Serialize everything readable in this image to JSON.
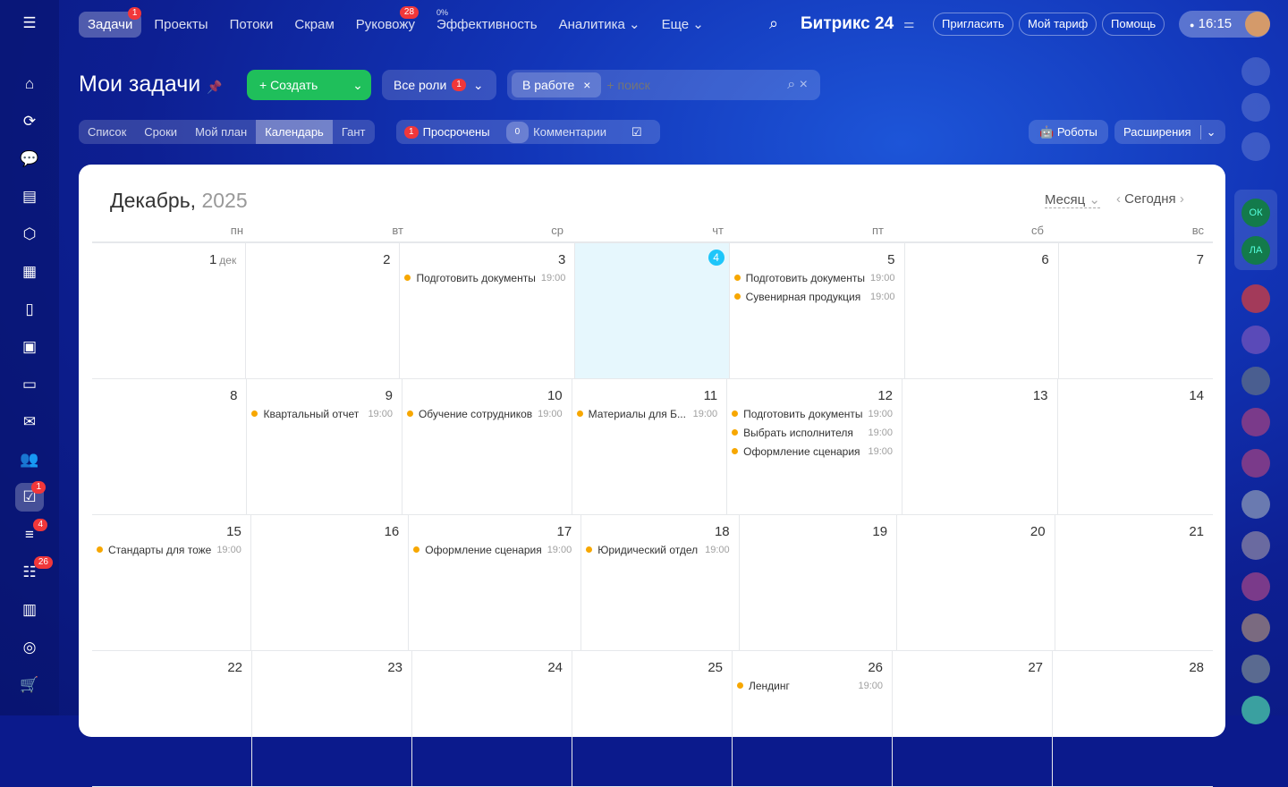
{
  "nav": {
    "items": [
      {
        "label": "Задачи",
        "badge": "1"
      },
      {
        "label": "Проекты"
      },
      {
        "label": "Потоки"
      },
      {
        "label": "Скрам"
      },
      {
        "label": "Руковожу",
        "badge": "28"
      },
      {
        "label": "Эффективность",
        "sup": "0%"
      },
      {
        "label": "Аналитика ⌄"
      },
      {
        "label": "Еще ⌄"
      }
    ]
  },
  "header": {
    "brand": "Битрикс 24",
    "invite": "Пригласить",
    "tariff": "Мой тариф",
    "help": "Помощь",
    "time": "16:15"
  },
  "sidebar": {
    "badges": {
      "tasks": "1",
      "feed": "4",
      "list": "26"
    }
  },
  "page": {
    "title": "Мои задачи",
    "create": "+ Создать",
    "roles": "Все роли",
    "roles_badge": "1",
    "filter_tag": "В работе",
    "search_placeholder": "+ поиск"
  },
  "views": [
    "Список",
    "Сроки",
    "Мой план",
    "Календарь",
    "Гант"
  ],
  "counters": {
    "overdue_count": "1",
    "overdue": "Просрочены",
    "comments_count": "0",
    "comments": "Комментарии"
  },
  "tools": {
    "robots": "Роботы",
    "extensions": "Расширения"
  },
  "calendar": {
    "month": "Декабрь,",
    "year": "2025",
    "view": "Месяц",
    "today": "Сегодня",
    "first_suffix": "дек",
    "dow": [
      "пн",
      "вт",
      "ср",
      "чт",
      "пт",
      "сб",
      "вс"
    ],
    "weeks": [
      [
        {
          "d": "1"
        },
        {
          "d": "2"
        },
        {
          "d": "3",
          "ev": [
            {
              "n": "Подготовить документы",
              "t": "19:00"
            }
          ]
        },
        {
          "d": "4",
          "today": true
        },
        {
          "d": "5",
          "ev": [
            {
              "n": "Подготовить документы",
              "t": "19:00"
            },
            {
              "n": "Сувенирная продукция",
              "t": "19:00"
            }
          ]
        },
        {
          "d": "6"
        },
        {
          "d": "7"
        }
      ],
      [
        {
          "d": "8"
        },
        {
          "d": "9",
          "ev": [
            {
              "n": "Квартальный отчет",
              "t": "19:00"
            }
          ]
        },
        {
          "d": "10",
          "ev": [
            {
              "n": "Обучение сотрудников",
              "t": "19:00"
            }
          ]
        },
        {
          "d": "11",
          "ev": [
            {
              "n": "Материалы для Б...",
              "t": "19:00"
            }
          ]
        },
        {
          "d": "12",
          "ev": [
            {
              "n": "Подготовить документы",
              "t": "19:00"
            },
            {
              "n": "Выбрать исполнителя",
              "t": "19:00"
            },
            {
              "n": "Оформление сценария",
              "t": "19:00"
            }
          ]
        },
        {
          "d": "13"
        },
        {
          "d": "14"
        }
      ],
      [
        {
          "d": "15",
          "ev": [
            {
              "n": "Стандарты для тоже",
              "t": "19:00"
            }
          ]
        },
        {
          "d": "16"
        },
        {
          "d": "17",
          "ev": [
            {
              "n": "Оформление сценария",
              "t": "19:00"
            }
          ]
        },
        {
          "d": "18",
          "ev": [
            {
              "n": "Юридический отдел",
              "t": "19:00"
            }
          ]
        },
        {
          "d": "19"
        },
        {
          "d": "20"
        },
        {
          "d": "21"
        }
      ],
      [
        {
          "d": "22"
        },
        {
          "d": "23"
        },
        {
          "d": "24"
        },
        {
          "d": "25"
        },
        {
          "d": "26",
          "ev": [
            {
              "n": "Лендинг",
              "t": "19:00"
            }
          ]
        },
        {
          "d": "27"
        },
        {
          "d": "28"
        }
      ]
    ]
  },
  "rightbar": {
    "initials": [
      "ОК",
      "ЛА"
    ]
  },
  "colors": {
    "accent": "#1ec6fa",
    "create": "#1fbf5b",
    "event_dot": "#f7a700",
    "badge": "#f1373a"
  }
}
